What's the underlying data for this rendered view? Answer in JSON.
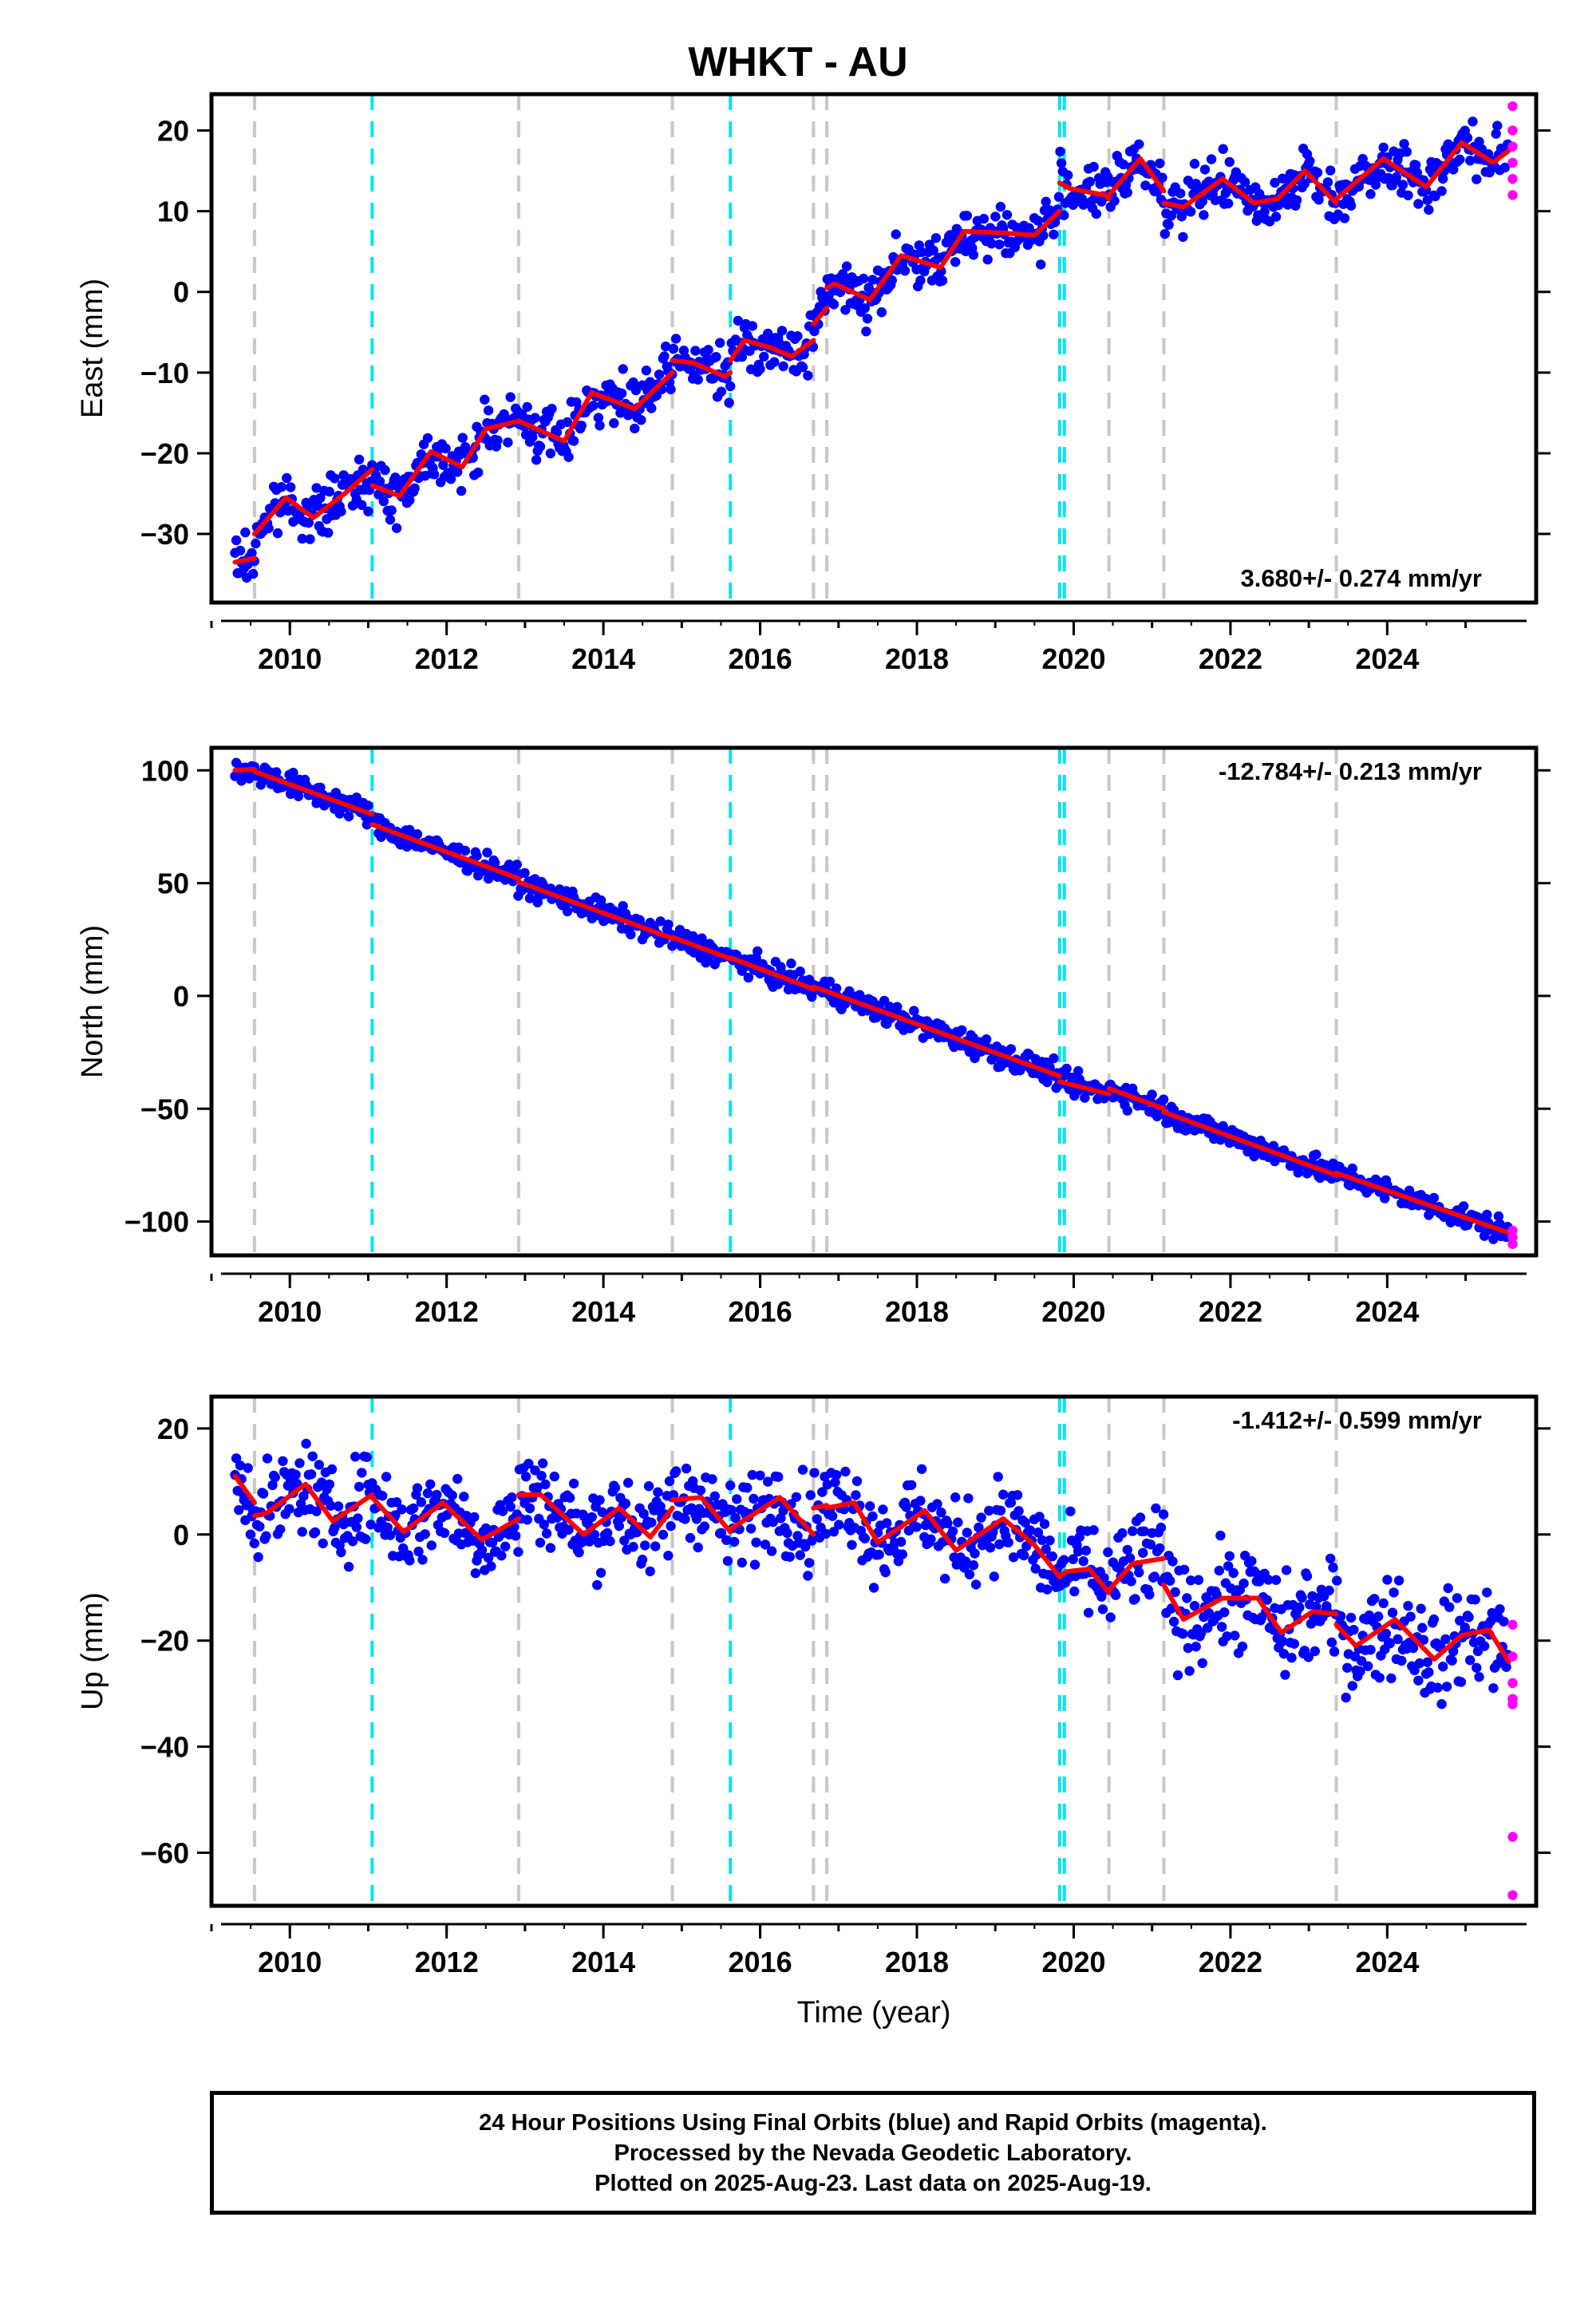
{
  "title": "WHKT - AU",
  "chart_data": [
    {
      "type": "scatter",
      "ylabel": "East (mm)",
      "xlim": [
        2009.0,
        2025.9
      ],
      "ylim": [
        -38.5,
        24.5
      ],
      "yticks": [
        20,
        10,
        0,
        -10,
        -20,
        -30
      ],
      "xticks": [
        2010,
        2012,
        2014,
        2016,
        2018,
        2020,
        2022,
        2024
      ],
      "rate_label": "3.680+/- 0.274 mm/yr",
      "rate_position": "bottom-right",
      "model": {
        "series": [
          {
            "x": [
              2009.3,
              2009.55
            ],
            "y": [
              -33.5,
              -33
            ]
          },
          {
            "x": [
              2009.55,
              2009.95,
              2010.3,
              2010.7,
              2011.05
            ],
            "y": [
              -30,
              -25.5,
              -28,
              -25,
              -22
            ]
          },
          {
            "x": [
              2011.05,
              2011.4,
              2011.8,
              2012.2,
              2012.5,
              2012.92
            ],
            "y": [
              -24,
              -25.3,
              -19.8,
              -21.7,
              -17,
              -16
            ]
          },
          {
            "x": [
              2012.92,
              2013.5,
              2013.85,
              2014.4,
              2014.88
            ],
            "y": [
              -16,
              -18.5,
              -12.5,
              -14.5,
              -10
            ]
          },
          {
            "x": [
              2014.88,
              2015.15,
              2015.55,
              2015.62
            ],
            "y": [
              -8.5,
              -8.8,
              -10.5,
              -10
            ]
          },
          {
            "x": [
              2015.62,
              2015.8,
              2016.1,
              2016.4,
              2016.68
            ],
            "y": [
              -8.5,
              -6,
              -6.8,
              -8,
              -6
            ]
          },
          {
            "x": [
              2016.68,
              2016.85
            ],
            "y": [
              -4,
              -2
            ]
          },
          {
            "x": [
              2016.85,
              2016.95,
              2017.4,
              2017.8,
              2018.3,
              2018.6,
              2019.1,
              2019.5,
              2019.82
            ],
            "y": [
              0.5,
              1,
              -1,
              4.5,
              3,
              7.5,
              7.3,
              7,
              10
            ]
          },
          {
            "x": [
              2019.82,
              2019.95,
              2020.4,
              2020.45
            ],
            "y": [
              13.5,
              12.8,
              12,
              11.5
            ]
          },
          {
            "x": [
              2020.45,
              2020.85,
              2021.15
            ],
            "y": [
              12,
              16.5,
              12.5
            ]
          },
          {
            "x": [
              2021.15,
              2021.4,
              2021.9,
              2022.3,
              2022.6,
              2022.95,
              2023.35
            ],
            "y": [
              11,
              10.5,
              14,
              11,
              11.5,
              15,
              11
            ]
          },
          {
            "x": [
              2023.35,
              2023.95,
              2024.5,
              2024.95,
              2025.35,
              2025.55
            ],
            "y": [
              11.5,
              16.5,
              13,
              18.5,
              16,
              17.5
            ]
          }
        ]
      },
      "gray_lines": [
        2009.55,
        2012.92,
        2014.88,
        2016.68,
        2016.85,
        2020.45,
        2021.15,
        2023.35
      ],
      "cyan_lines": [
        2011.05,
        2015.62,
        2019.82,
        2019.88
      ],
      "rapid_points": {
        "x": 2025.6,
        "y": [
          23,
          20,
          18,
          16,
          14,
          12
        ]
      }
    },
    {
      "type": "scatter",
      "ylabel": "North (mm)",
      "xlim": [
        2009.0,
        2025.9
      ],
      "ylim": [
        -115,
        110
      ],
      "yticks": [
        100,
        50,
        0,
        -50,
        -100
      ],
      "xticks": [
        2010,
        2012,
        2014,
        2016,
        2018,
        2020,
        2022,
        2024
      ],
      "rate_label": "-12.784+/- 0.213 mm/yr",
      "rate_position": "top-right",
      "model": {
        "series": [
          {
            "x": [
              2009.3,
              2009.55
            ],
            "y": [
              100,
              100.5
            ]
          },
          {
            "x": [
              2009.55,
              2011.05
            ],
            "y": [
              99.5,
              80.5
            ]
          },
          {
            "x": [
              2011.05,
              2012.92
            ],
            "y": [
              76,
              52
            ]
          },
          {
            "x": [
              2012.92,
              2014.88
            ],
            "y": [
              50.5,
              25.5
            ]
          },
          {
            "x": [
              2014.88,
              2015.62
            ],
            "y": [
              26,
              16.5
            ]
          },
          {
            "x": [
              2015.62,
              2016.68
            ],
            "y": [
              17,
              3
            ]
          },
          {
            "x": [
              2016.68,
              2016.85
            ],
            "y": [
              4,
              2
            ]
          },
          {
            "x": [
              2016.85,
              2019.82
            ],
            "y": [
              2,
              -35.5
            ]
          },
          {
            "x": [
              2019.82,
              2020.45
            ],
            "y": [
              -38,
              -43.5
            ]
          },
          {
            "x": [
              2020.45,
              2021.15
            ],
            "y": [
              -41,
              -50
            ]
          },
          {
            "x": [
              2021.15,
              2023.35
            ],
            "y": [
              -51.5,
              -79.5
            ]
          },
          {
            "x": [
              2023.35,
              2025.55
            ],
            "y": [
              -78.5,
              -105
            ]
          }
        ]
      },
      "gray_lines": [
        2009.55,
        2012.92,
        2014.88,
        2016.68,
        2016.85,
        2020.45,
        2021.15,
        2023.35
      ],
      "cyan_lines": [
        2011.05,
        2015.62,
        2019.82,
        2019.88
      ],
      "rapid_points": {
        "x": 2025.6,
        "y": [
          -104,
          -107,
          -110
        ]
      }
    },
    {
      "type": "scatter",
      "ylabel": "Up (mm)",
      "xlim": [
        2009.0,
        2025.9
      ],
      "ylim": [
        -70,
        26
      ],
      "yticks": [
        20,
        0,
        -20,
        -40,
        -60
      ],
      "xticks": [
        2010,
        2012,
        2014,
        2016,
        2018,
        2020,
        2022,
        2024
      ],
      "xlabel": "Time (year)",
      "rate_label": "-1.412+/- 0.599 mm/yr",
      "rate_position": "top-right",
      "model": {
        "series": [
          {
            "x": [
              2009.3,
              2009.55
            ],
            "y": [
              11,
              6
            ]
          },
          {
            "x": [
              2009.55,
              2009.7,
              2010.2,
              2010.55,
              2011.05
            ],
            "y": [
              3.5,
              4,
              9.5,
              2.5,
              7.5
            ]
          },
          {
            "x": [
              2011.05,
              2011.45,
              2011.95,
              2012.45,
              2012.92
            ],
            "y": [
              7,
              0.5,
              6,
              -1,
              3
            ]
          },
          {
            "x": [
              2012.92,
              2013.2,
              2013.75,
              2014.2,
              2014.6,
              2014.88
            ],
            "y": [
              7.5,
              7.5,
              0,
              5,
              -0.5,
              5
            ]
          },
          {
            "x": [
              2014.88,
              2015.25,
              2015.62
            ],
            "y": [
              6.5,
              7,
              0.5
            ]
          },
          {
            "x": [
              2015.62,
              2016.25,
              2016.68
            ],
            "y": [
              1,
              7,
              0
            ]
          },
          {
            "x": [
              2016.68,
              2016.85
            ],
            "y": [
              5,
              5.5
            ]
          },
          {
            "x": [
              2016.85,
              2017.2,
              2017.5,
              2018.1,
              2018.5,
              2019.1,
              2019.5,
              2019.82
            ],
            "y": [
              5,
              6,
              -1.5,
              4.5,
              -3,
              3,
              -2,
              -8
            ]
          },
          {
            "x": [
              2019.82,
              2019.9,
              2020.2,
              2020.45
            ],
            "y": [
              -8,
              -7,
              -6.5,
              -11
            ]
          },
          {
            "x": [
              2020.45,
              2020.75,
              2021.15
            ],
            "y": [
              -10.5,
              -5.5,
              -4.5
            ]
          },
          {
            "x": [
              2021.15,
              2021.4,
              2021.9,
              2022.35,
              2022.65,
              2023.05,
              2023.35
            ],
            "y": [
              -9.5,
              -16,
              -12,
              -12,
              -18.5,
              -14.5,
              -15
            ]
          },
          {
            "x": [
              2023.35,
              2023.6,
              2024.1,
              2024.6,
              2024.95,
              2025.3,
              2025.55
            ],
            "y": [
              -17,
              -21,
              -16,
              -23.5,
              -19,
              -18,
              -24
            ]
          }
        ]
      },
      "gray_lines": [
        2009.55,
        2012.92,
        2014.88,
        2016.68,
        2016.85,
        2020.45,
        2021.15,
        2023.35
      ],
      "cyan_lines": [
        2011.05,
        2015.62,
        2019.82,
        2019.88
      ],
      "rapid_points": {
        "x": 2025.6,
        "y": [
          -17,
          -23,
          -28,
          -31,
          -32,
          -57,
          -68
        ]
      }
    }
  ],
  "colors": {
    "final_orbits": "#0000ff",
    "rapid_orbits": "#ff00ff",
    "model": "#ff0000",
    "equipment_change": "#c8c8c8",
    "earthquake": "#00e5ee"
  },
  "caption": {
    "line1": "24 Hour Positions Using Final Orbits (blue) and Rapid Orbits (magenta).",
    "line2": "Processed by the Nevada Geodetic Laboratory.",
    "line3": "Plotted on 2025-Aug-23. Last data on 2025-Aug-19."
  }
}
